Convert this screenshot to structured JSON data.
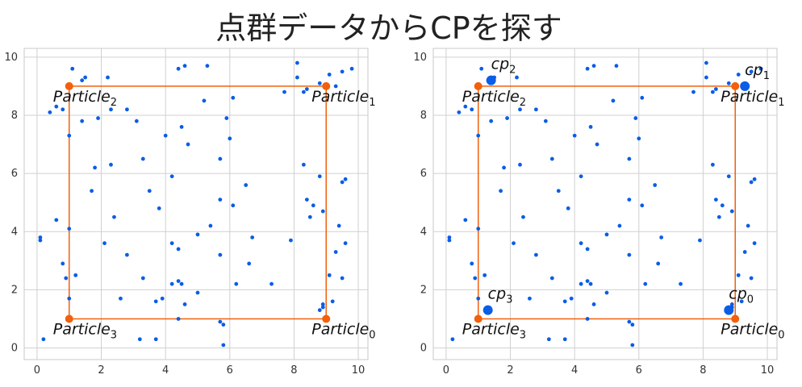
{
  "title": "点群データからCPを探す",
  "colors": {
    "points": "#0a5de6",
    "box": "#f2600c",
    "grid": "#d0d0d0",
    "frame": "#c8c8c8"
  },
  "chart_data": [
    {
      "type": "scatter",
      "xlabel": "",
      "ylabel": "",
      "xlim": [
        -0.4,
        10.3
      ],
      "ylim": [
        -0.4,
        10.3
      ],
      "xticks": [
        "0",
        "2",
        "4",
        "6",
        "8",
        "10"
      ],
      "yticks": [
        "0",
        "2",
        "4",
        "6",
        "8",
        "10"
      ],
      "grid": true,
      "points": [
        [
          1.1,
          9.6
        ],
        [
          1.4,
          9.2
        ],
        [
          1.5,
          9.3
        ],
        [
          2.2,
          9.3
        ],
        [
          4.4,
          9.6
        ],
        [
          4.6,
          9.7
        ],
        [
          5.3,
          9.7
        ],
        [
          8.1,
          9.8
        ],
        [
          8.1,
          9.3
        ],
        [
          9.1,
          9.4
        ],
        [
          9.3,
          9.0
        ],
        [
          9.5,
          9.5
        ],
        [
          9.8,
          9.6
        ],
        [
          0.4,
          8.1
        ],
        [
          0.6,
          8.3
        ],
        [
          0.8,
          8.2
        ],
        [
          1.4,
          7.8
        ],
        [
          1.9,
          7.9
        ],
        [
          2.3,
          8.2
        ],
        [
          2.8,
          8.2
        ],
        [
          3.1,
          7.8
        ],
        [
          5.2,
          8.5
        ],
        [
          5.9,
          7.9
        ],
        [
          6.1,
          8.6
        ],
        [
          7.7,
          8.8
        ],
        [
          8.3,
          8.8
        ],
        [
          8.4,
          8.9
        ],
        [
          8.8,
          9.1
        ],
        [
          1.0,
          7.3
        ],
        [
          4.0,
          7.3
        ],
        [
          4.5,
          7.6
        ],
        [
          4.7,
          7.0
        ],
        [
          6.0,
          7.2
        ],
        [
          1.8,
          6.2
        ],
        [
          2.3,
          6.3
        ],
        [
          3.3,
          6.5
        ],
        [
          5.7,
          6.5
        ],
        [
          8.3,
          6.3
        ],
        [
          1.7,
          5.4
        ],
        [
          3.5,
          5.4
        ],
        [
          4.2,
          5.9
        ],
        [
          5.7,
          5.1
        ],
        [
          6.1,
          4.9
        ],
        [
          6.5,
          5.6
        ],
        [
          8.4,
          5.1
        ],
        [
          8.6,
          4.9
        ],
        [
          8.8,
          5.9
        ],
        [
          9.5,
          5.7
        ],
        [
          9.6,
          5.8
        ],
        [
          0.6,
          4.4
        ],
        [
          1.0,
          4.1
        ],
        [
          2.4,
          4.5
        ],
        [
          3.8,
          4.8
        ],
        [
          4.2,
          3.6
        ],
        [
          5.0,
          3.9
        ],
        [
          5.4,
          4.2
        ],
        [
          6.7,
          3.8
        ],
        [
          8.5,
          4.5
        ],
        [
          8.9,
          4.7
        ],
        [
          9.4,
          4.2
        ],
        [
          0.1,
          3.8
        ],
        [
          0.1,
          3.7
        ],
        [
          2.1,
          3.6
        ],
        [
          4.4,
          3.4
        ],
        [
          7.9,
          3.7
        ],
        [
          9.3,
          3.3
        ],
        [
          9.6,
          3.6
        ],
        [
          0.8,
          2.9
        ],
        [
          0.9,
          2.4
        ],
        [
          1.2,
          2.5
        ],
        [
          2.8,
          3.2
        ],
        [
          3.3,
          2.4
        ],
        [
          4.2,
          2.2
        ],
        [
          4.4,
          2.3
        ],
        [
          4.5,
          2.2
        ],
        [
          5.0,
          1.9
        ],
        [
          5.7,
          3.2
        ],
        [
          6.2,
          2.2
        ],
        [
          6.6,
          2.9
        ],
        [
          7.3,
          2.2
        ],
        [
          9.1,
          2.5
        ],
        [
          9.5,
          2.4
        ],
        [
          1.0,
          1.7
        ],
        [
          2.6,
          1.7
        ],
        [
          3.7,
          1.6
        ],
        [
          3.9,
          1.7
        ],
        [
          4.6,
          1.5
        ],
        [
          8.8,
          1.3
        ],
        [
          8.9,
          1.4
        ],
        [
          8.9,
          1.5
        ],
        [
          9.2,
          1.6
        ],
        [
          0.2,
          0.3
        ],
        [
          3.2,
          0.3
        ],
        [
          3.7,
          0.3
        ],
        [
          4.4,
          1.0
        ],
        [
          5.7,
          0.9
        ],
        [
          5.8,
          0.8
        ],
        [
          5.8,
          0.1
        ]
      ],
      "particles": [
        {
          "label": "Particle",
          "sub": "0",
          "x": 9,
          "y": 1
        },
        {
          "label": "Particle",
          "sub": "1",
          "x": 9,
          "y": 9
        },
        {
          "label": "Particle",
          "sub": "2",
          "x": 1,
          "y": 9
        },
        {
          "label": "Particle",
          "sub": "3",
          "x": 1,
          "y": 1
        }
      ],
      "cps": []
    },
    {
      "type": "scatter",
      "xlabel": "",
      "ylabel": "",
      "xlim": [
        -0.4,
        10.3
      ],
      "ylim": [
        -0.4,
        10.3
      ],
      "xticks": [
        "0",
        "2",
        "4",
        "6",
        "8",
        "10"
      ],
      "yticks": [
        "0",
        "2",
        "4",
        "6",
        "8",
        "10"
      ],
      "grid": true,
      "points": [
        [
          1.1,
          9.6
        ],
        [
          1.4,
          9.2
        ],
        [
          1.5,
          9.3
        ],
        [
          2.2,
          9.3
        ],
        [
          4.4,
          9.6
        ],
        [
          4.6,
          9.7
        ],
        [
          5.3,
          9.7
        ],
        [
          8.1,
          9.8
        ],
        [
          8.1,
          9.3
        ],
        [
          9.1,
          9.4
        ],
        [
          9.3,
          9.0
        ],
        [
          9.5,
          9.5
        ],
        [
          9.8,
          9.6
        ],
        [
          0.4,
          8.1
        ],
        [
          0.6,
          8.3
        ],
        [
          0.8,
          8.2
        ],
        [
          1.4,
          7.8
        ],
        [
          1.9,
          7.9
        ],
        [
          2.3,
          8.2
        ],
        [
          2.8,
          8.2
        ],
        [
          3.1,
          7.8
        ],
        [
          5.2,
          8.5
        ],
        [
          5.9,
          7.9
        ],
        [
          6.1,
          8.6
        ],
        [
          7.7,
          8.8
        ],
        [
          8.3,
          8.8
        ],
        [
          8.4,
          8.9
        ],
        [
          8.8,
          9.1
        ],
        [
          1.0,
          7.3
        ],
        [
          4.0,
          7.3
        ],
        [
          4.5,
          7.6
        ],
        [
          4.7,
          7.0
        ],
        [
          6.0,
          7.2
        ],
        [
          1.8,
          6.2
        ],
        [
          2.3,
          6.3
        ],
        [
          3.3,
          6.5
        ],
        [
          5.7,
          6.5
        ],
        [
          8.3,
          6.3
        ],
        [
          1.7,
          5.4
        ],
        [
          3.5,
          5.4
        ],
        [
          4.2,
          5.9
        ],
        [
          5.7,
          5.1
        ],
        [
          6.1,
          4.9
        ],
        [
          6.5,
          5.6
        ],
        [
          8.4,
          5.1
        ],
        [
          8.6,
          4.9
        ],
        [
          8.8,
          5.9
        ],
        [
          9.5,
          5.7
        ],
        [
          9.6,
          5.8
        ],
        [
          0.6,
          4.4
        ],
        [
          1.0,
          4.1
        ],
        [
          2.4,
          4.5
        ],
        [
          3.8,
          4.8
        ],
        [
          4.2,
          3.6
        ],
        [
          5.0,
          3.9
        ],
        [
          5.4,
          4.2
        ],
        [
          6.7,
          3.8
        ],
        [
          8.5,
          4.5
        ],
        [
          8.9,
          4.7
        ],
        [
          9.4,
          4.2
        ],
        [
          0.1,
          3.8
        ],
        [
          0.1,
          3.7
        ],
        [
          2.1,
          3.6
        ],
        [
          4.4,
          3.4
        ],
        [
          7.9,
          3.7
        ],
        [
          9.3,
          3.3
        ],
        [
          9.6,
          3.6
        ],
        [
          0.8,
          2.9
        ],
        [
          0.9,
          2.4
        ],
        [
          1.2,
          2.5
        ],
        [
          2.8,
          3.2
        ],
        [
          3.3,
          2.4
        ],
        [
          4.2,
          2.2
        ],
        [
          4.4,
          2.3
        ],
        [
          4.5,
          2.2
        ],
        [
          5.0,
          1.9
        ],
        [
          5.7,
          3.2
        ],
        [
          6.2,
          2.2
        ],
        [
          6.6,
          2.9
        ],
        [
          7.3,
          2.2
        ],
        [
          9.1,
          2.5
        ],
        [
          9.5,
          2.4
        ],
        [
          1.0,
          1.7
        ],
        [
          2.6,
          1.7
        ],
        [
          3.7,
          1.6
        ],
        [
          3.9,
          1.7
        ],
        [
          4.6,
          1.5
        ],
        [
          8.8,
          1.3
        ],
        [
          8.9,
          1.4
        ],
        [
          8.9,
          1.5
        ],
        [
          9.2,
          1.6
        ],
        [
          0.2,
          0.3
        ],
        [
          3.2,
          0.3
        ],
        [
          3.7,
          0.3
        ],
        [
          4.4,
          1.0
        ],
        [
          5.7,
          0.9
        ],
        [
          5.8,
          0.8
        ],
        [
          5.8,
          0.1
        ]
      ],
      "particles": [
        {
          "label": "Particle",
          "sub": "0",
          "x": 9,
          "y": 1
        },
        {
          "label": "Particle",
          "sub": "1",
          "x": 9,
          "y": 9
        },
        {
          "label": "Particle",
          "sub": "2",
          "x": 1,
          "y": 9
        },
        {
          "label": "Particle",
          "sub": "3",
          "x": 1,
          "y": 1
        }
      ],
      "cps": [
        {
          "label": "cp",
          "sub": "0",
          "x": 8.8,
          "y": 1.3
        },
        {
          "label": "cp",
          "sub": "1",
          "x": 9.3,
          "y": 9.0
        },
        {
          "label": "cp",
          "sub": "2",
          "x": 1.4,
          "y": 9.2
        },
        {
          "label": "cp",
          "sub": "3",
          "x": 1.3,
          "y": 1.3
        }
      ]
    }
  ]
}
